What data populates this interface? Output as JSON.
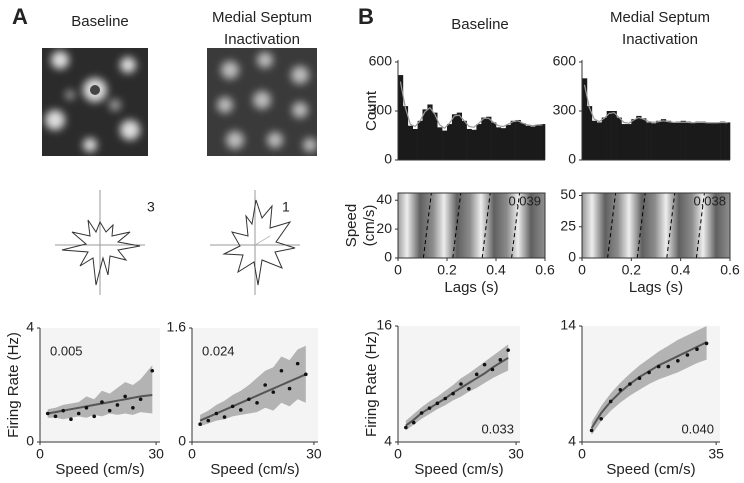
{
  "panel_labels": [
    "A",
    "B"
  ],
  "column_titles": [
    [
      "Baseline"
    ],
    [
      "Medial Septum",
      "Inactivation"
    ],
    [
      "Baseline"
    ],
    [
      "Medial Septum",
      "Inactivation"
    ]
  ],
  "polar_plots": [
    {
      "label": "3"
    },
    {
      "label": "1"
    }
  ],
  "chart_data": [
    {
      "type": "histogram",
      "ylabel": [
        "Count"
      ],
      "color": "#1a1a1a",
      "fit_color": "#9a9a9a",
      "bins": [
        0,
        0.02,
        0.04,
        0.06,
        0.08,
        0.1,
        0.12,
        0.14,
        0.16,
        0.18,
        0.2,
        0.22,
        0.24,
        0.26,
        0.28,
        0.3,
        0.32,
        0.34,
        0.36,
        0.38,
        0.4,
        0.42,
        0.44,
        0.46,
        0.48,
        0.5,
        0.52,
        0.54,
        0.56,
        0.58,
        0.6
      ],
      "values": [
        520,
        330,
        210,
        190,
        240,
        310,
        340,
        290,
        200,
        180,
        220,
        280,
        290,
        240,
        190,
        185,
        220,
        260,
        265,
        230,
        200,
        195,
        215,
        240,
        245,
        225,
        210,
        205,
        215,
        220
      ],
      "fit": [
        480,
        320,
        220,
        205,
        240,
        295,
        320,
        280,
        215,
        195,
        225,
        270,
        275,
        240,
        205,
        200,
        225,
        255,
        255,
        230,
        210,
        205,
        220,
        235,
        240,
        225,
        215,
        210,
        215,
        215
      ],
      "xlim": [
        0,
        0.6
      ],
      "ylim": [
        0,
        600
      ],
      "yticks": [
        0,
        300,
        600
      ]
    },
    {
      "type": "histogram",
      "color": "#1a1a1a",
      "fit_color": "#9a9a9a",
      "bins": [
        0,
        0.02,
        0.04,
        0.06,
        0.08,
        0.1,
        0.12,
        0.14,
        0.16,
        0.18,
        0.2,
        0.22,
        0.24,
        0.26,
        0.28,
        0.3,
        0.32,
        0.34,
        0.36,
        0.38,
        0.4,
        0.42,
        0.44,
        0.46,
        0.48,
        0.5,
        0.52,
        0.54,
        0.56,
        0.58,
        0.6
      ],
      "values": [
        500,
        330,
        240,
        230,
        260,
        300,
        300,
        260,
        220,
        220,
        250,
        270,
        255,
        230,
        225,
        240,
        250,
        240,
        230,
        235,
        240,
        235,
        230,
        235,
        235,
        230,
        230,
        230,
        235,
        230
      ],
      "fit": [
        460,
        320,
        250,
        235,
        255,
        285,
        290,
        260,
        230,
        225,
        245,
        260,
        250,
        235,
        230,
        235,
        240,
        235,
        230,
        230,
        232,
        230,
        228,
        230,
        230,
        228,
        228,
        228,
        230,
        228
      ],
      "xlim": [
        0,
        0.6
      ],
      "ylim": [
        0,
        600
      ],
      "yticks": [
        0,
        300,
        600
      ]
    },
    {
      "type": "heatmap",
      "ylabel": [
        "Speed",
        "(cm/s)"
      ],
      "xlabel": "Lags (s)",
      "annotation": "0.039",
      "xlim": [
        0,
        0.6
      ],
      "xticks": [
        0,
        0.2,
        0.4,
        0.6
      ],
      "ylim": [
        0,
        45
      ],
      "yticks": [
        0,
        20,
        40
      ]
    },
    {
      "type": "heatmap",
      "xlabel": "Lags (s)",
      "annotation": "0.038",
      "xlim": [
        0,
        0.6
      ],
      "xticks": [
        0,
        0.2,
        0.4,
        0.6
      ],
      "ylim": [
        0,
        52
      ],
      "yticks": [
        0,
        25,
        50
      ]
    },
    {
      "type": "scatter",
      "ylabel": [
        "Firing Rate (Hz)"
      ],
      "xlabel": "Speed (cm/s)",
      "annotation": "0.005",
      "xlim": [
        0,
        31
      ],
      "xticks": [
        0,
        30
      ],
      "ylim": [
        0,
        4
      ],
      "yticks": [
        0,
        4
      ],
      "x": [
        2,
        4,
        6,
        8,
        10,
        12,
        14,
        16,
        18,
        20,
        22,
        24,
        26,
        29
      ],
      "values": [
        1.0,
        0.9,
        1.1,
        0.8,
        1.0,
        1.2,
        0.9,
        1.4,
        1.1,
        1.3,
        1.6,
        1.2,
        1.5,
        2.5
      ],
      "fit": [
        1.0,
        1.05,
        1.1,
        1.15,
        1.2,
        1.25,
        1.3,
        1.35,
        1.4,
        1.45,
        1.5,
        1.55,
        1.6,
        1.65
      ],
      "ci_lower": [
        0.85,
        0.85,
        0.8,
        0.85,
        0.9,
        0.85,
        0.95,
        0.9,
        1.0,
        0.95,
        1.0,
        0.95,
        1.05,
        1.0
      ],
      "ci_upper": [
        1.15,
        1.2,
        1.3,
        1.35,
        1.4,
        1.6,
        1.5,
        1.8,
        1.7,
        1.9,
        2.1,
        2.0,
        2.2,
        2.7
      ]
    },
    {
      "type": "scatter",
      "xlabel": "Speed (cm/s)",
      "annotation": "0.024",
      "xlim": [
        0,
        31
      ],
      "xticks": [
        0,
        30
      ],
      "ylim": [
        0,
        1.6
      ],
      "yticks": [
        0,
        1.6
      ],
      "x": [
        2,
        4,
        6,
        8,
        10,
        12,
        14,
        16,
        18,
        20,
        22,
        24,
        26,
        28
      ],
      "values": [
        0.25,
        0.3,
        0.4,
        0.35,
        0.5,
        0.45,
        0.6,
        0.55,
        0.8,
        0.7,
        1.0,
        0.75,
        1.1,
        0.95
      ],
      "fit": [
        0.3,
        0.35,
        0.4,
        0.45,
        0.5,
        0.55,
        0.6,
        0.65,
        0.7,
        0.75,
        0.8,
        0.85,
        0.9,
        0.95
      ],
      "ci_lower": [
        0.22,
        0.26,
        0.3,
        0.32,
        0.36,
        0.38,
        0.4,
        0.42,
        0.48,
        0.44,
        0.55,
        0.5,
        0.6,
        0.55
      ],
      "ci_upper": [
        0.38,
        0.44,
        0.52,
        0.58,
        0.66,
        0.72,
        0.8,
        0.9,
        1.0,
        1.05,
        1.2,
        1.15,
        1.3,
        1.35
      ]
    },
    {
      "type": "scatter",
      "ylabel": [
        "Firing Rate (Hz)"
      ],
      "xlabel": "Speed (cm/s)",
      "annotation": "0.033",
      "xlim": [
        0,
        31
      ],
      "xticks": [
        0,
        30
      ],
      "ylim": [
        4,
        16
      ],
      "yticks": [
        4,
        16
      ],
      "x": [
        2,
        4,
        6,
        8,
        10,
        12,
        14,
        16,
        18,
        20,
        22,
        24,
        26,
        28
      ],
      "values": [
        5.5,
        6,
        7,
        7.5,
        8,
        8.5,
        9,
        10,
        9.5,
        11,
        12,
        11.5,
        12.5,
        13.5
      ],
      "fit": [
        5.7,
        6.3,
        7,
        7.5,
        8,
        8.5,
        9.1,
        9.6,
        10.1,
        10.6,
        11.1,
        11.7,
        12.2,
        12.7
      ],
      "ci_lower": [
        5.2,
        5.8,
        6.4,
        6.9,
        7.4,
        7.8,
        8.3,
        8.7,
        9.2,
        9.6,
        10.1,
        10.6,
        11.0,
        11.4
      ],
      "ci_upper": [
        6.2,
        6.9,
        7.6,
        8.2,
        8.7,
        9.3,
        9.9,
        10.6,
        11.1,
        11.7,
        12.3,
        12.9,
        13.5,
        14.1
      ]
    },
    {
      "type": "scatter",
      "xlabel": "Speed (cm/s)",
      "annotation": "0.040",
      "xlim": [
        0,
        36
      ],
      "xticks": [
        0,
        35
      ],
      "ylim": [
        4,
        14
      ],
      "yticks": [
        4,
        14
      ],
      "x": [
        2.5,
        5,
        7.5,
        10,
        12.5,
        15,
        17.5,
        20,
        22.5,
        25,
        27.5,
        30,
        32.5
      ],
      "values": [
        5,
        6,
        7.5,
        8.5,
        9,
        9.5,
        10,
        10.5,
        10.5,
        11,
        11.5,
        12,
        12.5
      ],
      "fit": [
        5.2,
        6.5,
        7.5,
        8.3,
        9,
        9.6,
        10.1,
        10.6,
        11,
        11.4,
        11.8,
        12.2,
        12.6
      ],
      "ci_lower": [
        4.6,
        5.8,
        6.7,
        7.4,
        8.0,
        8.5,
        9.0,
        9.4,
        9.7,
        10.0,
        10.4,
        10.8,
        11.1
      ],
      "ci_upper": [
        5.7,
        7.1,
        8.2,
        9.1,
        9.9,
        10.6,
        11.2,
        11.8,
        12.3,
        12.8,
        13.2,
        13.6,
        14.0
      ]
    }
  ]
}
